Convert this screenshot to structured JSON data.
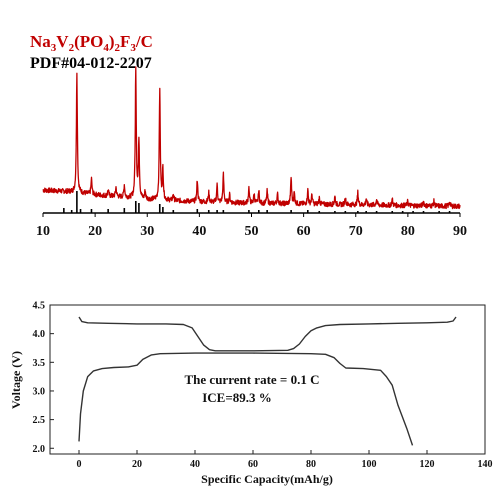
{
  "legend": {
    "sample": "Na3V2(PO4)2F3/C",
    "sample_parts": [
      {
        "t": "Na",
        "sub": false
      },
      {
        "t": "3",
        "sub": true
      },
      {
        "t": "V",
        "sub": false
      },
      {
        "t": "2",
        "sub": true
      },
      {
        "t": "(PO",
        "sub": false
      },
      {
        "t": "4",
        "sub": true
      },
      {
        "t": ")",
        "sub": false
      },
      {
        "t": "2",
        "sub": true
      },
      {
        "t": "F",
        "sub": false
      },
      {
        "t": "3",
        "sub": true
      },
      {
        "t": "/C",
        "sub": false
      }
    ],
    "reference": "PDF#04-012-2207"
  },
  "colors": {
    "sample": "#c00000",
    "reference": "#000000"
  },
  "chart_data": [
    {
      "type": "line",
      "xlabel": "",
      "ylabel": "",
      "xlim": [
        10,
        90
      ],
      "xticks": [
        10,
        20,
        30,
        40,
        50,
        60,
        70,
        80,
        90
      ],
      "y_units": "arbitrary intensity",
      "series": [
        {
          "name": "Na3V2(PO4)2F3/C",
          "style": "red noisy XRD pattern",
          "background": [
            [
              10,
              12
            ],
            [
              15,
              11
            ],
            [
              20,
              9
            ],
            [
              25,
              7.5
            ],
            [
              30,
              6
            ],
            [
              40,
              4.5
            ],
            [
              50,
              3.5
            ],
            [
              60,
              3
            ],
            [
              70,
              2.5
            ],
            [
              80,
              2
            ],
            [
              90,
              1.5
            ]
          ],
          "peaks": [
            [
              16.5,
              78
            ],
            [
              19.3,
              10
            ],
            [
              22.5,
              4
            ],
            [
              24.0,
              6
            ],
            [
              25.6,
              8
            ],
            [
              27.8,
              85
            ],
            [
              28.4,
              38
            ],
            [
              29.6,
              5
            ],
            [
              32.4,
              72
            ],
            [
              33.0,
              20
            ],
            [
              35.0,
              4
            ],
            [
              39.6,
              14
            ],
            [
              41.8,
              6
            ],
            [
              43.4,
              11
            ],
            [
              44.6,
              18
            ],
            [
              45.8,
              5
            ],
            [
              49.5,
              10
            ],
            [
              50.5,
              6
            ],
            [
              51.4,
              8
            ],
            [
              53.0,
              8
            ],
            [
              55.0,
              6
            ],
            [
              57.6,
              17
            ],
            [
              58.2,
              7
            ],
            [
              60.8,
              9
            ],
            [
              61.6,
              6
            ],
            [
              63.0,
              4
            ],
            [
              66.0,
              5
            ],
            [
              68.0,
              5
            ],
            [
              70.4,
              8
            ],
            [
              72.0,
              4
            ],
            [
              74.0,
              4
            ],
            [
              77.0,
              4
            ],
            [
              80.0,
              3
            ],
            [
              83.0,
              3
            ],
            [
              85.0,
              3
            ],
            [
              88.0,
              3
            ]
          ]
        },
        {
          "name": "PDF#04-012-2207",
          "style": "black reference stick lines",
          "sticks": [
            [
              14.0,
              5
            ],
            [
              15.5,
              3
            ],
            [
              16.5,
              22
            ],
            [
              17.2,
              4
            ],
            [
              19.3,
              4
            ],
            [
              22.5,
              4
            ],
            [
              25.6,
              5
            ],
            [
              27.8,
              12
            ],
            [
              28.4,
              10
            ],
            [
              32.4,
              9
            ],
            [
              33.0,
              6
            ],
            [
              35.0,
              3
            ],
            [
              39.6,
              4
            ],
            [
              41.8,
              3
            ],
            [
              43.4,
              3
            ],
            [
              44.6,
              3
            ],
            [
              49.5,
              3
            ],
            [
              51.4,
              3
            ],
            [
              53.0,
              3
            ],
            [
              57.6,
              3
            ],
            [
              60.8,
              3
            ],
            [
              63.0,
              2
            ],
            [
              66.0,
              2
            ],
            [
              68.0,
              2
            ],
            [
              70.4,
              2
            ],
            [
              72.0,
              2
            ],
            [
              74.0,
              2
            ],
            [
              77.0,
              2
            ],
            [
              79.0,
              2
            ],
            [
              81.0,
              2
            ],
            [
              83.0,
              2
            ],
            [
              86.0,
              2
            ],
            [
              88.0,
              2
            ]
          ]
        }
      ]
    },
    {
      "type": "line",
      "xlabel": "Specific Capacity(mAh/g)",
      "ylabel": "Voltage (V)",
      "xlim": [
        -10,
        140
      ],
      "ylim": [
        1.9,
        4.5
      ],
      "xticks": [
        0,
        20,
        40,
        60,
        80,
        100,
        120,
        140
      ],
      "yticks": [
        "2.0",
        "2.5",
        "3.0",
        "3.5",
        "4.0",
        "4.5"
      ],
      "annotations": [
        "The current rate = 0.1 C",
        "ICE=89.3 %"
      ],
      "series": [
        {
          "name": "",
          "style": "charge",
          "points": [
            [
              0,
              2.12
            ],
            [
              0.5,
              2.6
            ],
            [
              1.5,
              3.0
            ],
            [
              3,
              3.25
            ],
            [
              5,
              3.35
            ],
            [
              8,
              3.39
            ],
            [
              12,
              3.41
            ],
            [
              17,
              3.42
            ],
            [
              20,
              3.45
            ],
            [
              22,
              3.55
            ],
            [
              25,
              3.63
            ],
            [
              28,
              3.65
            ],
            [
              40,
              3.66
            ],
            [
              60,
              3.66
            ],
            [
              80,
              3.65
            ],
            [
              85,
              3.64
            ],
            [
              88,
              3.58
            ],
            [
              90,
              3.48
            ],
            [
              92,
              3.4
            ],
            [
              98,
              3.39
            ],
            [
              104,
              3.36
            ],
            [
              106,
              3.25
            ],
            [
              108,
              3.1
            ],
            [
              110,
              2.75
            ],
            [
              113,
              2.35
            ],
            [
              115,
              2.05
            ]
          ]
        },
        {
          "name": "",
          "style": "discharge",
          "points": [
            [
              130,
              4.29
            ],
            [
              129,
              4.22
            ],
            [
              127,
              4.2
            ],
            [
              120,
              4.19
            ],
            [
              110,
              4.18
            ],
            [
              100,
              4.17
            ],
            [
              90,
              4.16
            ],
            [
              85,
              4.14
            ],
            [
              82,
              4.1
            ],
            [
              80,
              4.05
            ],
            [
              78,
              3.95
            ],
            [
              76,
              3.82
            ],
            [
              74,
              3.74
            ],
            [
              72,
              3.71
            ],
            [
              60,
              3.7
            ],
            [
              47,
              3.7
            ],
            [
              45,
              3.72
            ],
            [
              43,
              3.8
            ],
            [
              41,
              3.95
            ],
            [
              39,
              4.1
            ],
            [
              36,
              4.16
            ],
            [
              30,
              4.17
            ],
            [
              20,
              4.17
            ],
            [
              10,
              4.18
            ],
            [
              3,
              4.19
            ],
            [
              1,
              4.21
            ],
            [
              0,
              4.29
            ]
          ]
        }
      ]
    }
  ]
}
